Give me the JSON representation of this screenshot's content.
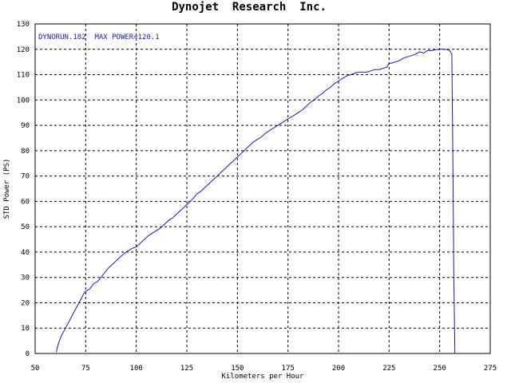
{
  "chart_data": {
    "type": "line",
    "title": "Dynojet  Research  Inc.",
    "xlabel": "Kilometers per Hour",
    "ylabel": "STD Power (PS)",
    "annotation": "DYNORUN.182  MAX POWER=120.1",
    "xlim": [
      50,
      275
    ],
    "ylim": [
      0,
      130
    ],
    "xticks": [
      50,
      75,
      100,
      125,
      150,
      175,
      200,
      225,
      250,
      275
    ],
    "yticks": [
      0,
      10,
      20,
      30,
      40,
      50,
      60,
      70,
      80,
      90,
      100,
      110,
      120,
      130
    ],
    "grid": true,
    "line_color": "#1a1aa6",
    "series": [
      {
        "x": [
          60.5,
          61,
          62,
          63,
          64,
          65,
          66,
          67,
          68,
          69,
          70,
          71,
          72,
          73,
          74,
          75,
          76,
          77,
          78,
          79,
          80,
          81,
          82,
          83,
          84,
          85,
          86,
          88,
          90,
          92,
          94,
          96,
          98,
          100,
          102,
          104,
          106,
          108,
          110,
          112,
          114,
          116,
          118,
          120,
          122,
          124,
          126,
          128,
          130,
          132,
          134,
          136,
          138,
          140,
          142,
          144,
          146,
          148,
          150,
          152,
          154,
          156,
          158,
          160,
          162,
          164,
          166,
          168,
          170,
          172,
          174,
          176,
          178,
          180,
          182,
          184,
          186,
          188,
          190,
          192,
          194,
          196,
          198,
          200,
          202,
          204,
          206,
          208,
          210,
          212,
          214,
          216,
          218,
          220,
          222,
          224,
          225,
          226,
          228,
          230,
          232,
          234,
          236,
          238,
          239,
          240,
          242,
          244,
          246,
          248,
          250,
          252,
          254,
          255,
          256,
          256.5,
          257,
          257.5
        ],
        "values": [
          0.5,
          2.5,
          5,
          7,
          8.5,
          10,
          11.5,
          13,
          14.5,
          16,
          17.5,
          19,
          20.5,
          22,
          23.5,
          24.5,
          25,
          25.5,
          26.5,
          27.5,
          28,
          28.5,
          29.5,
          30.5,
          31.5,
          32.5,
          33.5,
          35,
          36.5,
          38,
          39.5,
          40.5,
          41.5,
          42,
          43.5,
          45,
          46.5,
          47.5,
          48.5,
          49.5,
          51,
          52.5,
          53.5,
          55,
          56.5,
          58,
          59.5,
          61,
          63,
          64,
          65.5,
          67,
          68.5,
          70,
          71.5,
          73,
          74.5,
          76,
          77.5,
          79,
          80.5,
          82,
          83.5,
          84.5,
          85.5,
          87,
          88,
          89,
          90,
          91,
          92,
          93,
          94,
          95,
          96,
          97.5,
          99,
          100,
          101.5,
          102.5,
          104,
          105,
          106.5,
          107.5,
          108.5,
          109.5,
          110,
          110.5,
          111,
          111,
          111,
          111.5,
          112,
          112,
          112.5,
          113,
          114.5,
          114.5,
          115,
          115.5,
          116.5,
          117,
          117.5,
          118,
          118.5,
          119,
          118.5,
          119.5,
          119.5,
          119.8,
          120,
          120.1,
          119.8,
          119.5,
          118,
          80,
          30,
          0
        ]
      }
    ]
  }
}
